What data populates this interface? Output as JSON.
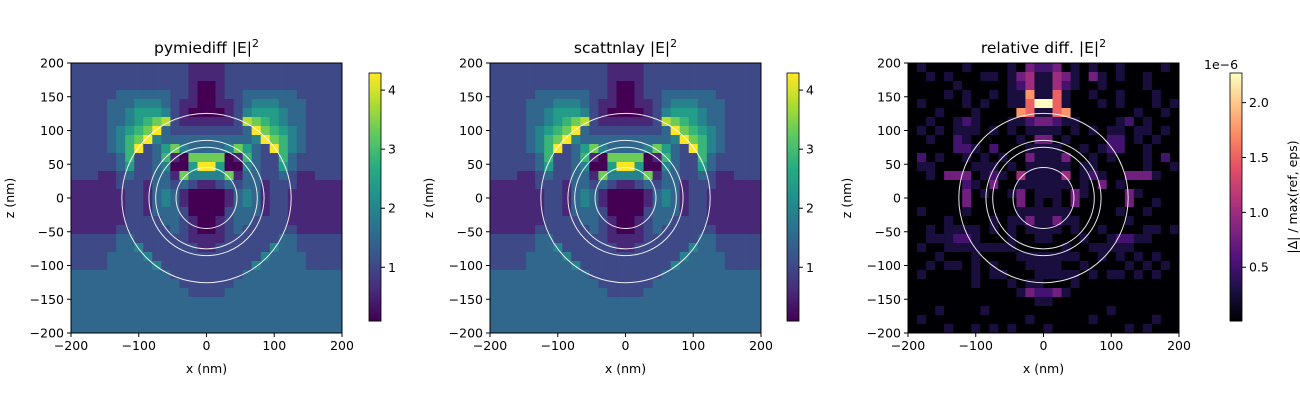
{
  "chart_data": [
    {
      "type": "heatmap",
      "title": "pymiediff |E|",
      "title_superscript": "2",
      "xlabel": "x (nm)",
      "ylabel": "z (nm)",
      "xlim": [
        -200,
        200
      ],
      "ylim": [
        -200,
        200
      ],
      "xticks": [
        -200,
        -100,
        0,
        100,
        200
      ],
      "yticks": [
        -200,
        -150,
        -100,
        -50,
        0,
        50,
        100,
        150,
        200
      ],
      "colormap": "viridis",
      "colorbar": {
        "vmin": 0.09,
        "vmax": 4.29,
        "ticks": [
          1,
          2,
          3,
          4
        ],
        "tick_labels": [
          "1",
          "2",
          "3",
          "4"
        ],
        "label": "",
        "offset_text": ""
      },
      "grid_size": [
        30,
        30
      ],
      "level_scale": "value = vmin + level/9*(vmax-vmin)",
      "mirror_columns": true,
      "levels": [
        "222222222222211",
        "222222222222211",
        "222222222222210",
        "222223333332210",
        "222233344432110",
        "222233455542100",
        "222233456782111",
        "222234567932222",
        "222234679433333",
        "222234692357433",
        "222223622361077",
        "222223522340059",
        "222112322331744",
        "111112221332321",
        "111111221343100",
        "111111221343100",
        "111111221333200",
        "111111222233210",
        "111112222223210",
        "222223322222211",
        "222223342222221",
        "222233334222222",
        "222233333422222",
        "333333333332222",
        "333333333333222",
        "333333333333322",
        "333333333333333",
        "333333333333333",
        "333333333333333",
        "333333333333333"
      ],
      "circle_radii_nm": [
        45,
        75,
        85,
        125
      ]
    },
    {
      "type": "heatmap",
      "title": "scattnlay |E|",
      "title_superscript": "2",
      "xlabel": "x (nm)",
      "ylabel": "z (nm)",
      "xlim": [
        -200,
        200
      ],
      "ylim": [
        -200,
        200
      ],
      "xticks": [
        -200,
        -100,
        0,
        100,
        200
      ],
      "yticks": [
        -200,
        -150,
        -100,
        -50,
        0,
        50,
        100,
        150,
        200
      ],
      "colormap": "viridis",
      "colorbar": {
        "vmin": 0.09,
        "vmax": 4.29,
        "ticks": [
          1,
          2,
          3,
          4
        ],
        "tick_labels": [
          "1",
          "2",
          "3",
          "4"
        ],
        "label": "",
        "offset_text": ""
      },
      "grid_size": [
        30,
        30
      ],
      "level_scale": "value = vmin + level/9*(vmax-vmin)",
      "mirror_columns": true,
      "levels": [
        "222222222222211",
        "222222222222211",
        "222222222222210",
        "222223333332210",
        "222233344432110",
        "222233455542100",
        "222233456782111",
        "222234567932222",
        "222234679433333",
        "222234692357433",
        "222223622361077",
        "222223522340059",
        "222112322331744",
        "111112221332321",
        "111111221343100",
        "111111221343100",
        "111111221333200",
        "111111222233210",
        "111112222223210",
        "222223322222211",
        "222223342222221",
        "222233334222222",
        "222233333422222",
        "333333333332222",
        "333333333333222",
        "333333333333322",
        "333333333333333",
        "333333333333333",
        "333333333333333",
        "333333333333333"
      ],
      "circle_radii_nm": [
        45,
        75,
        85,
        125
      ]
    },
    {
      "type": "heatmap",
      "title": "relative diff. |E|",
      "title_superscript": "2",
      "xlabel": "x (nm)",
      "ylabel": "z (nm)",
      "xlim": [
        -200,
        200
      ],
      "ylim": [
        -200,
        200
      ],
      "xticks": [
        -200,
        -100,
        0,
        100,
        200
      ],
      "yticks": [
        -200,
        -150,
        -100,
        -50,
        0,
        50,
        100,
        150,
        200
      ],
      "colormap": "magma",
      "colorbar": {
        "vmin": 0.01,
        "vmax": 2.27,
        "ticks": [
          0.5,
          1.0,
          1.5,
          2.0
        ],
        "tick_labels": [
          "0.5",
          "1.0",
          "1.5",
          "2.0"
        ],
        "label": "|Δ| / max(ref, eps)",
        "offset_text": "1e−6"
      },
      "grid_size": [
        30,
        30
      ],
      "level_scale": "value = (vmin + level/9*(vmax-vmin)) * 1e-6",
      "mirror_columns": false,
      "levels": [
        "010000100001032230101001000010",
        "001010001101341143103101001000",
        "000001000001241142100100001000",
        "000010100101171161001001000100",
        "010000101001169961000101000101",
        "000100010000761167000000010010",
        "001001210001123321100001201000",
        "010101110101011110101011011010",
        "001002100000103301000022010100",
        "000002210200011110010122001000",
        "020100101010031113001010001020",
        "011000011101011111011000001001",
        "001033301210411114012100333100",
        "000000210300111111010301000000",
        "000000301001301110310000310000",
        "000000300000301010300000300100",
        "010000100000111111000001001000",
        "000010000101131131100000100000",
        "001011110101011110100100001101",
        "001112210001001100010012211000",
        "010011111111000001001111100000",
        "000100010000111111100101010100",
        "001011010100011110010000101010",
        "010000010110001111101011010100",
        "000000010001011000100000000000",
        "000000000000132231000000000000",
        "000000000000001100000000000000",
        "000100001000000000000010000000",
        "010000000000010000001000000100",
        "000010010101000100000000101000"
      ],
      "circle_radii_nm": [
        45,
        75,
        85,
        125
      ]
    }
  ]
}
